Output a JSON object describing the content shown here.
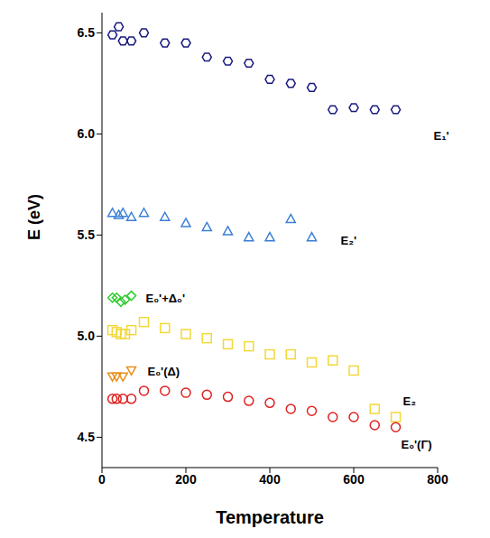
{
  "chart_data": {
    "type": "scatter",
    "x_label": "Temperature",
    "y_label": "E (eV)",
    "xlim": [
      0,
      800
    ],
    "ylim": [
      4.35,
      6.6
    ],
    "xticks": [
      0,
      200,
      400,
      600,
      800
    ],
    "yticks": [
      4.5,
      {
        "value": 5,
        "label": "5.0"
      },
      5.5,
      {
        "value": 6,
        "label": "6.0"
      },
      6.5
    ],
    "grid": false,
    "series": [
      {
        "name": "E₁'",
        "color": "#1a1a80",
        "marker": "hexagon",
        "x": [
          25,
          40,
          50,
          70,
          100,
          150,
          200,
          250,
          300,
          350,
          400,
          450,
          500,
          550,
          600,
          650,
          700
        ],
        "values": [
          6.49,
          6.53,
          6.46,
          6.46,
          6.5,
          6.45,
          6.45,
          6.38,
          6.36,
          6.35,
          6.27,
          6.25,
          6.23,
          6.12,
          6.13,
          6.12,
          6.12
        ]
      },
      {
        "name": "E₂'",
        "color": "#3a7fd5",
        "marker": "triangle",
        "x": [
          25,
          40,
          50,
          70,
          100,
          150,
          200,
          250,
          300,
          350,
          400,
          450,
          500
        ],
        "values": [
          5.61,
          5.6,
          5.61,
          5.59,
          5.61,
          5.59,
          5.56,
          5.54,
          5.52,
          5.49,
          5.49,
          5.58,
          5.49
        ]
      },
      {
        "name": "E₀'+Δ₀'",
        "color": "#33cc33",
        "marker": "diamond",
        "x": [
          25,
          35,
          45,
          55,
          70
        ],
        "values": [
          5.19,
          5.19,
          5.17,
          5.18,
          5.2
        ]
      },
      {
        "name": "E₂",
        "color": "#f2d83a",
        "marker": "square",
        "x": [
          25,
          35,
          45,
          55,
          70,
          100,
          150,
          200,
          250,
          300,
          350,
          400,
          450,
          500,
          550,
          600,
          650,
          700
        ],
        "values": [
          5.03,
          5.02,
          5.01,
          5.01,
          5.03,
          5.07,
          5.04,
          5.01,
          4.99,
          4.96,
          4.95,
          4.91,
          4.91,
          4.87,
          4.88,
          4.83,
          4.64,
          4.6
        ]
      },
      {
        "name": "E₀'(Δ)",
        "color": "#e8901e",
        "marker": "triangle-down",
        "x": [
          25,
          35,
          50,
          70
        ],
        "values": [
          4.8,
          4.8,
          4.8,
          4.83
        ]
      },
      {
        "name": "E₀'(Γ)",
        "color": "#e02020",
        "marker": "circle",
        "x": [
          25,
          35,
          50,
          70,
          100,
          150,
          200,
          250,
          300,
          350,
          400,
          450,
          500,
          550,
          600,
          650,
          700
        ],
        "values": [
          4.69,
          4.69,
          4.69,
          4.69,
          4.73,
          4.73,
          4.72,
          4.71,
          4.7,
          4.68,
          4.67,
          4.64,
          4.63,
          4.6,
          4.6,
          4.56,
          4.55
        ]
      }
    ]
  }
}
